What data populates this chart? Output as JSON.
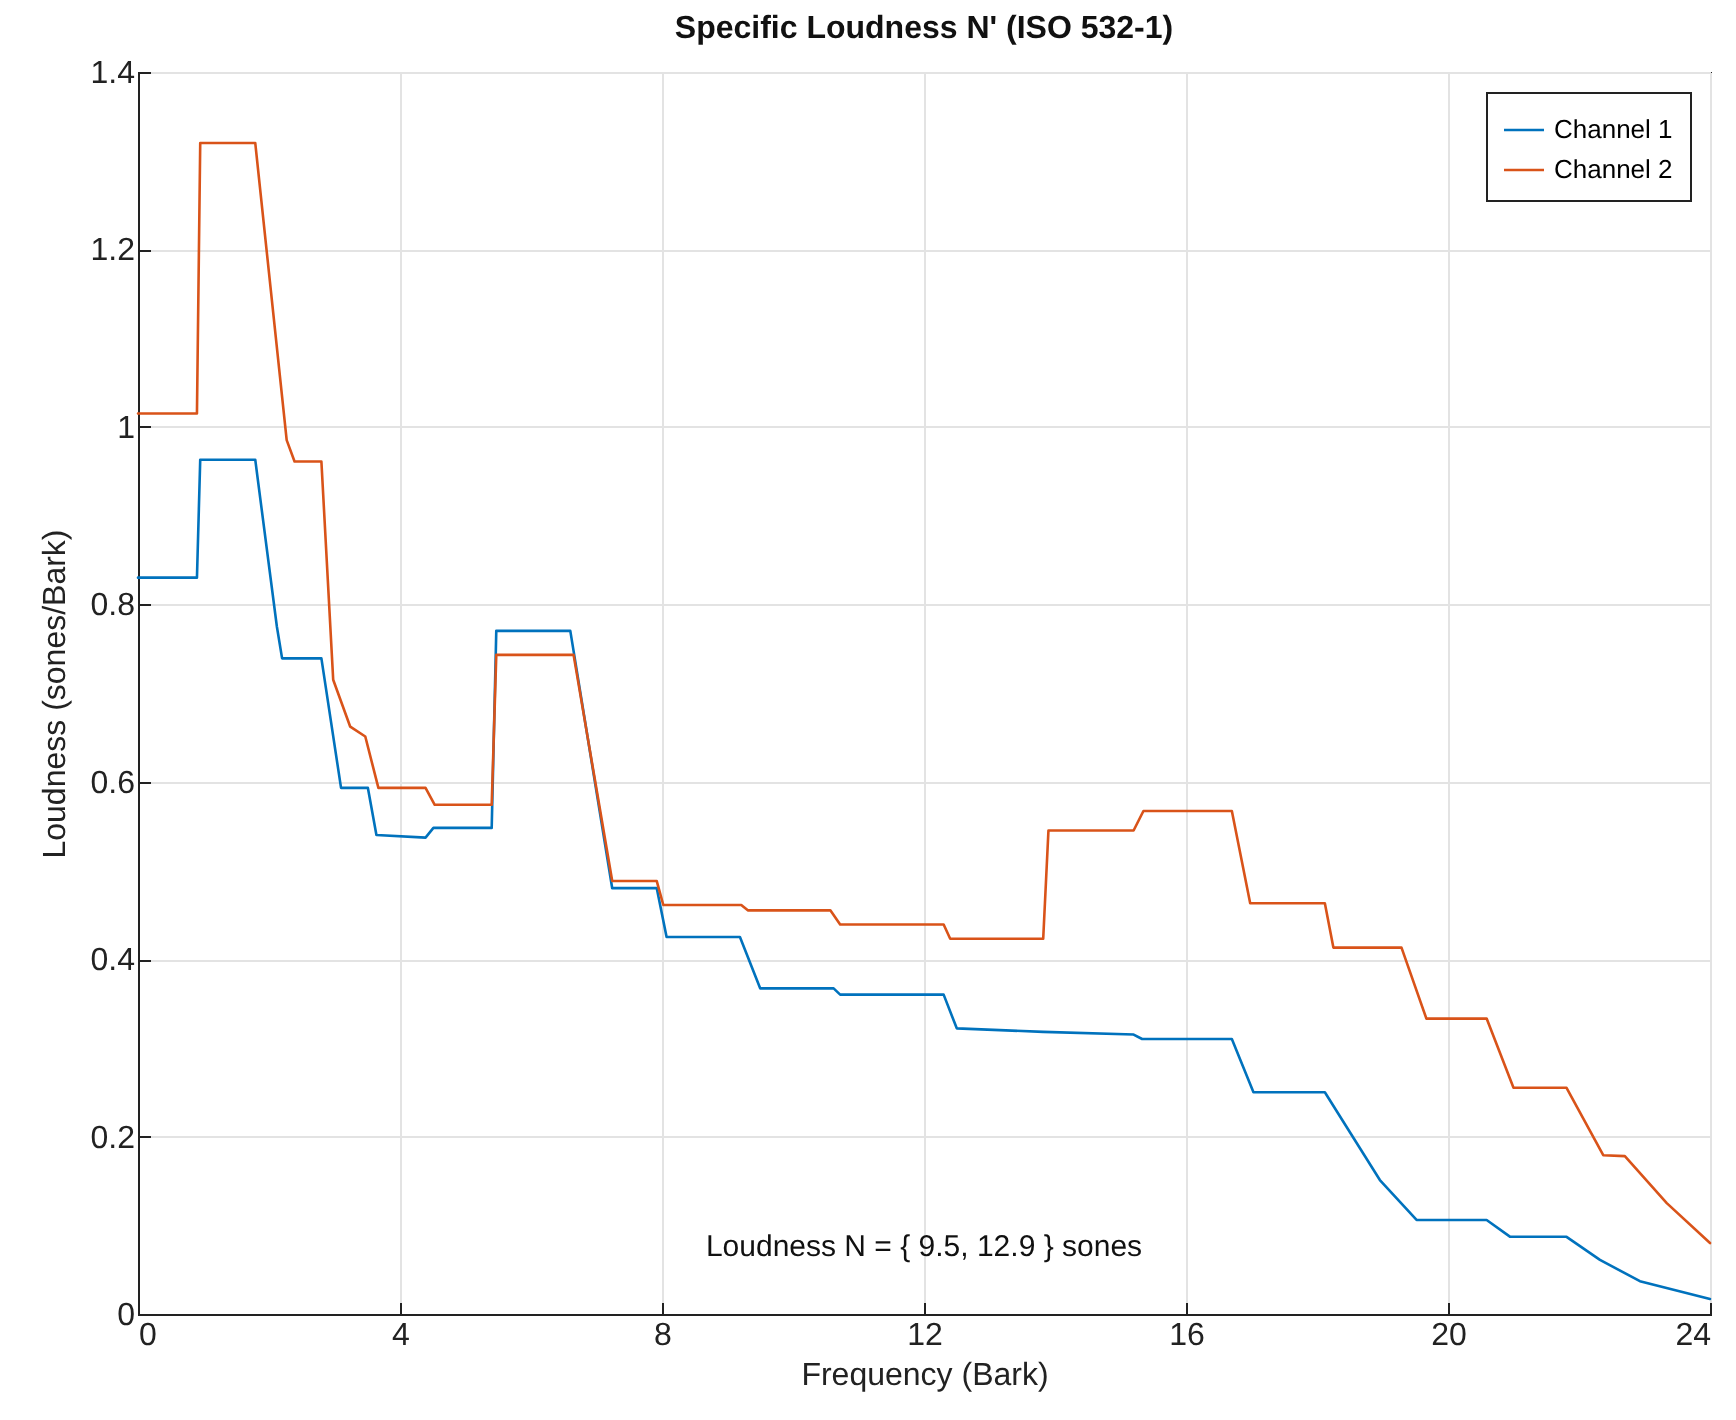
{
  "chart_data": {
    "type": "line",
    "title": "Specific Loudness N'  (ISO 532-1)",
    "xlabel": "Frequency (Bark)",
    "ylabel": "Loudness (sones/Bark)",
    "xlim": [
      0,
      24
    ],
    "xticks": [
      0,
      4,
      8,
      12,
      16,
      20,
      24
    ],
    "ylim": [
      0,
      1.4
    ],
    "yticks": [
      0,
      0.2,
      0.4,
      0.6,
      0.8,
      1,
      1.2,
      1.4
    ],
    "grid": true,
    "legend": "top right",
    "annotations": [
      "Loudness N = { 9.5, 12.9 } sones"
    ],
    "series": [
      {
        "name": "Channel 1",
        "color": "#0072bd",
        "x": [
          0,
          0.9,
          0.95,
          1.79,
          2.12,
          2.2,
          2.8,
          3.1,
          3.51,
          3.64,
          4.39,
          4.51,
          5.4,
          5.47,
          6.6,
          7.24,
          7.92,
          8.07,
          9.19,
          9.5,
          10.62,
          10.72,
          12.3,
          12.5,
          13.82,
          15.2,
          15.33,
          16.7,
          17.03,
          18.12,
          18.45,
          18.96,
          19.52,
          20.59,
          20.95,
          21.81,
          22.32,
          22.93,
          24
        ],
        "values": [
          0.83,
          0.83,
          0.963,
          0.963,
          0.775,
          0.739,
          0.739,
          0.593,
          0.593,
          0.54,
          0.537,
          0.548,
          0.548,
          0.77,
          0.77,
          0.48,
          0.48,
          0.425,
          0.425,
          0.367,
          0.367,
          0.36,
          0.36,
          0.322,
          0.318,
          0.315,
          0.31,
          0.31,
          0.25,
          0.25,
          0.211,
          0.151,
          0.106,
          0.106,
          0.087,
          0.087,
          0.061,
          0.037,
          0.017
        ]
      },
      {
        "name": "Channel 2",
        "color": "#d95319",
        "x": [
          0,
          0.9,
          0.95,
          1.79,
          2.27,
          2.39,
          2.8,
          2.98,
          3.24,
          3.47,
          3.67,
          4.39,
          4.53,
          5.4,
          5.47,
          6.65,
          7.24,
          7.92,
          8.02,
          9.21,
          9.31,
          10.57,
          10.72,
          12.3,
          12.4,
          13.82,
          13.9,
          15.2,
          15.35,
          16.7,
          16.98,
          18.12,
          18.25,
          19.29,
          19.67,
          20.59,
          21.0,
          21.81,
          22.37,
          22.7,
          23.34,
          24
        ],
        "values": [
          1.015,
          1.015,
          1.32,
          1.32,
          0.985,
          0.961,
          0.961,
          0.715,
          0.662,
          0.651,
          0.593,
          0.593,
          0.574,
          0.574,
          0.743,
          0.743,
          0.488,
          0.488,
          0.461,
          0.461,
          0.455,
          0.455,
          0.439,
          0.439,
          0.423,
          0.423,
          0.545,
          0.545,
          0.567,
          0.567,
          0.463,
          0.463,
          0.413,
          0.413,
          0.333,
          0.333,
          0.255,
          0.255,
          0.179,
          0.178,
          0.125,
          0.08
        ]
      }
    ]
  }
}
